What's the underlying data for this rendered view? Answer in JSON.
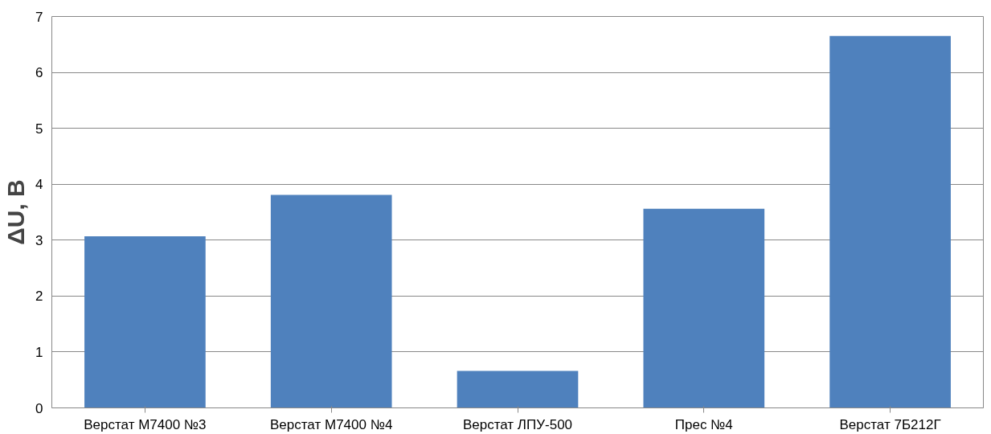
{
  "chart_data": {
    "type": "bar",
    "ylabel": "ΔU, В",
    "categories": [
      "Верстат М7400 №3",
      "Верстат М7400 №4",
      "Верстат ЛПУ-500",
      "Прес №4",
      "Верстат 7Б212Г"
    ],
    "values": [
      3.07,
      3.81,
      0.66,
      3.56,
      6.65
    ],
    "color": "#4f81bd",
    "ylim": [
      0,
      7
    ],
    "yticks": [
      0,
      1,
      2,
      3,
      4,
      5,
      6,
      7
    ],
    "grid": "y"
  }
}
